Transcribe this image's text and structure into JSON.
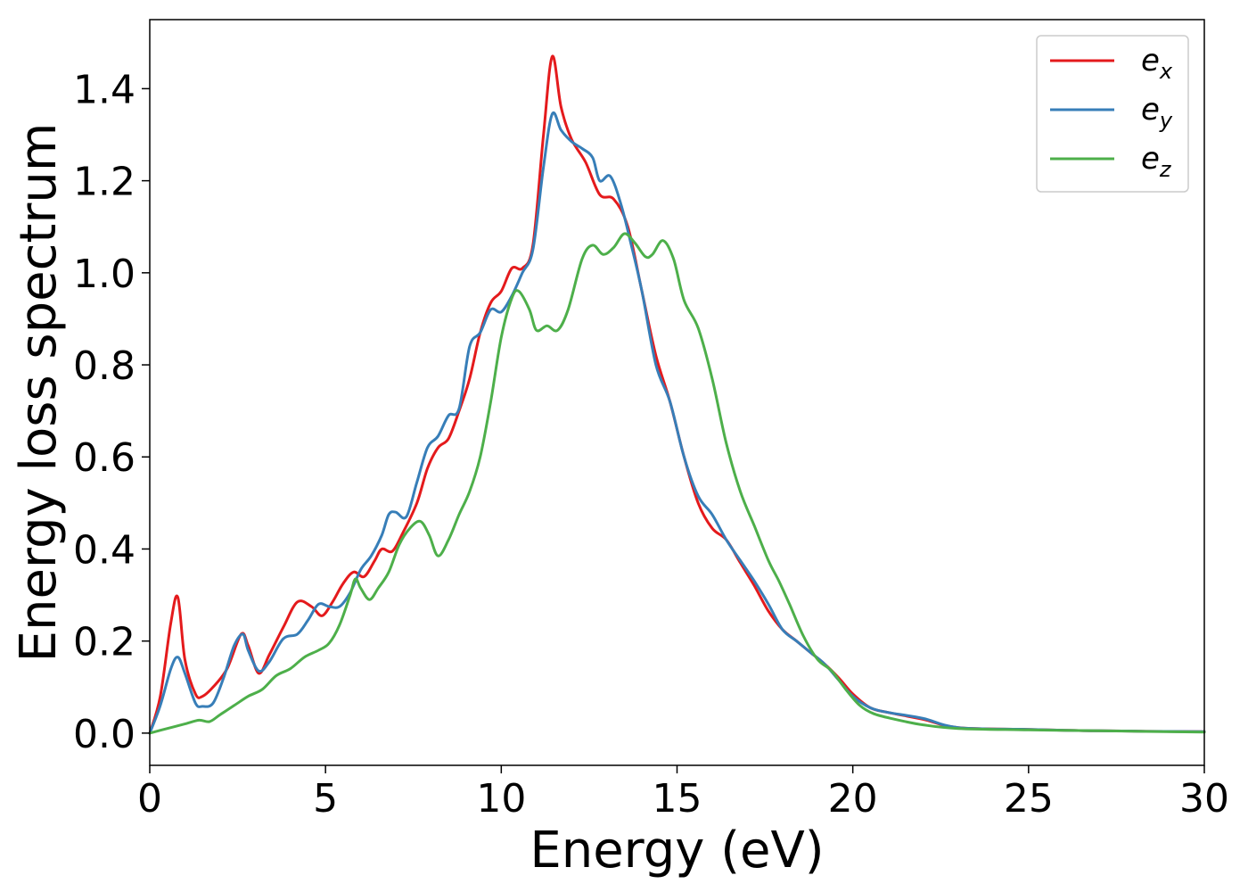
{
  "chart_data": {
    "type": "line",
    "title": "",
    "xlabel": "Energy (eV)",
    "ylabel": "Energy loss spectrum",
    "xlim": [
      0,
      30
    ],
    "ylim": [
      -0.07,
      1.55
    ],
    "xticks": [
      0,
      5,
      10,
      15,
      20,
      25,
      30
    ],
    "xtick_labels": [
      "0",
      "5",
      "10",
      "15",
      "20",
      "25",
      "30"
    ],
    "yticks": [
      0.0,
      0.2,
      0.4,
      0.6,
      0.8,
      1.0,
      1.2,
      1.4
    ],
    "ytick_labels": [
      "0.0",
      "0.2",
      "0.4",
      "0.6",
      "0.8",
      "1.0",
      "1.2",
      "1.4"
    ],
    "grid": false,
    "legend_position": "top-right",
    "series": [
      {
        "name": "e_x",
        "legend_base": "e",
        "legend_sub": "x",
        "color": "#e41a1c",
        "points": [
          [
            0,
            0
          ],
          [
            0.3,
            0.08
          ],
          [
            0.6,
            0.24
          ],
          [
            0.8,
            0.295
          ],
          [
            1.0,
            0.16
          ],
          [
            1.3,
            0.085
          ],
          [
            1.5,
            0.08
          ],
          [
            1.8,
            0.1
          ],
          [
            2.2,
            0.14
          ],
          [
            2.6,
            0.215
          ],
          [
            2.8,
            0.19
          ],
          [
            3.1,
            0.13
          ],
          [
            3.4,
            0.17
          ],
          [
            3.8,
            0.23
          ],
          [
            4.2,
            0.285
          ],
          [
            4.6,
            0.275
          ],
          [
            4.9,
            0.255
          ],
          [
            5.2,
            0.285
          ],
          [
            5.5,
            0.325
          ],
          [
            5.8,
            0.35
          ],
          [
            6.1,
            0.34
          ],
          [
            6.4,
            0.375
          ],
          [
            6.6,
            0.4
          ],
          [
            6.9,
            0.395
          ],
          [
            7.2,
            0.435
          ],
          [
            7.6,
            0.5
          ],
          [
            7.9,
            0.575
          ],
          [
            8.2,
            0.62
          ],
          [
            8.5,
            0.64
          ],
          [
            8.8,
            0.7
          ],
          [
            9.1,
            0.77
          ],
          [
            9.4,
            0.87
          ],
          [
            9.7,
            0.935
          ],
          [
            10.0,
            0.96
          ],
          [
            10.3,
            1.01
          ],
          [
            10.6,
            1.01
          ],
          [
            10.9,
            1.06
          ],
          [
            11.2,
            1.3
          ],
          [
            11.45,
            1.47
          ],
          [
            11.7,
            1.36
          ],
          [
            12.0,
            1.29
          ],
          [
            12.4,
            1.24
          ],
          [
            12.8,
            1.17
          ],
          [
            13.2,
            1.16
          ],
          [
            13.6,
            1.1
          ],
          [
            14.0,
            0.96
          ],
          [
            14.4,
            0.82
          ],
          [
            14.8,
            0.72
          ],
          [
            15.2,
            0.6
          ],
          [
            15.6,
            0.5
          ],
          [
            16.0,
            0.445
          ],
          [
            16.4,
            0.42
          ],
          [
            16.8,
            0.37
          ],
          [
            17.2,
            0.32
          ],
          [
            17.6,
            0.265
          ],
          [
            18.0,
            0.225
          ],
          [
            18.4,
            0.2
          ],
          [
            18.8,
            0.175
          ],
          [
            19.2,
            0.15
          ],
          [
            19.6,
            0.12
          ],
          [
            20.0,
            0.085
          ],
          [
            20.5,
            0.055
          ],
          [
            21.0,
            0.045
          ],
          [
            22.0,
            0.03
          ],
          [
            23.0,
            0.012
          ],
          [
            25.0,
            0.008
          ],
          [
            27.0,
            0.005
          ],
          [
            30.0,
            0.003
          ]
        ]
      },
      {
        "name": "e_y",
        "legend_base": "e",
        "legend_sub": "y",
        "color": "#377eb8",
        "points": [
          [
            0,
            0
          ],
          [
            0.3,
            0.06
          ],
          [
            0.6,
            0.14
          ],
          [
            0.8,
            0.165
          ],
          [
            1.0,
            0.13
          ],
          [
            1.3,
            0.065
          ],
          [
            1.5,
            0.058
          ],
          [
            1.8,
            0.065
          ],
          [
            2.1,
            0.12
          ],
          [
            2.4,
            0.19
          ],
          [
            2.65,
            0.215
          ],
          [
            2.8,
            0.18
          ],
          [
            3.1,
            0.135
          ],
          [
            3.4,
            0.155
          ],
          [
            3.8,
            0.205
          ],
          [
            4.2,
            0.215
          ],
          [
            4.5,
            0.245
          ],
          [
            4.8,
            0.28
          ],
          [
            5.1,
            0.275
          ],
          [
            5.4,
            0.275
          ],
          [
            5.7,
            0.305
          ],
          [
            6.0,
            0.355
          ],
          [
            6.3,
            0.385
          ],
          [
            6.6,
            0.43
          ],
          [
            6.8,
            0.475
          ],
          [
            7.0,
            0.48
          ],
          [
            7.3,
            0.47
          ],
          [
            7.6,
            0.545
          ],
          [
            7.9,
            0.62
          ],
          [
            8.2,
            0.645
          ],
          [
            8.5,
            0.69
          ],
          [
            8.8,
            0.705
          ],
          [
            9.1,
            0.84
          ],
          [
            9.4,
            0.87
          ],
          [
            9.7,
            0.92
          ],
          [
            10.0,
            0.915
          ],
          [
            10.3,
            0.95
          ],
          [
            10.6,
            1.0
          ],
          [
            10.9,
            1.05
          ],
          [
            11.2,
            1.23
          ],
          [
            11.45,
            1.345
          ],
          [
            11.7,
            1.31
          ],
          [
            12.0,
            1.285
          ],
          [
            12.3,
            1.27
          ],
          [
            12.6,
            1.25
          ],
          [
            12.8,
            1.2
          ],
          [
            13.1,
            1.21
          ],
          [
            13.4,
            1.15
          ],
          [
            13.7,
            1.06
          ],
          [
            14.0,
            0.96
          ],
          [
            14.4,
            0.8
          ],
          [
            14.8,
            0.72
          ],
          [
            15.2,
            0.6
          ],
          [
            15.6,
            0.515
          ],
          [
            16.0,
            0.475
          ],
          [
            16.4,
            0.42
          ],
          [
            16.8,
            0.375
          ],
          [
            17.2,
            0.33
          ],
          [
            17.6,
            0.28
          ],
          [
            18.0,
            0.225
          ],
          [
            18.4,
            0.2
          ],
          [
            18.8,
            0.175
          ],
          [
            19.2,
            0.15
          ],
          [
            19.6,
            0.115
          ],
          [
            20.0,
            0.08
          ],
          [
            20.5,
            0.055
          ],
          [
            21.0,
            0.045
          ],
          [
            22.0,
            0.032
          ],
          [
            23.0,
            0.012
          ],
          [
            25.0,
            0.008
          ],
          [
            27.0,
            0.005
          ],
          [
            30.0,
            0.003
          ]
        ]
      },
      {
        "name": "e_z",
        "legend_base": "e",
        "legend_sub": "z",
        "color": "#4daf4a",
        "points": [
          [
            0,
            0
          ],
          [
            0.5,
            0.01
          ],
          [
            1.0,
            0.02
          ],
          [
            1.4,
            0.028
          ],
          [
            1.7,
            0.025
          ],
          [
            2.0,
            0.04
          ],
          [
            2.4,
            0.06
          ],
          [
            2.8,
            0.08
          ],
          [
            3.2,
            0.095
          ],
          [
            3.6,
            0.125
          ],
          [
            4.0,
            0.14
          ],
          [
            4.4,
            0.165
          ],
          [
            4.8,
            0.18
          ],
          [
            5.1,
            0.195
          ],
          [
            5.4,
            0.235
          ],
          [
            5.7,
            0.3
          ],
          [
            5.85,
            0.335
          ],
          [
            6.0,
            0.315
          ],
          [
            6.25,
            0.29
          ],
          [
            6.5,
            0.315
          ],
          [
            6.8,
            0.35
          ],
          [
            7.1,
            0.41
          ],
          [
            7.4,
            0.445
          ],
          [
            7.7,
            0.46
          ],
          [
            7.95,
            0.43
          ],
          [
            8.2,
            0.385
          ],
          [
            8.5,
            0.42
          ],
          [
            8.8,
            0.475
          ],
          [
            9.1,
            0.525
          ],
          [
            9.4,
            0.6
          ],
          [
            9.7,
            0.72
          ],
          [
            10.0,
            0.86
          ],
          [
            10.3,
            0.945
          ],
          [
            10.5,
            0.96
          ],
          [
            10.8,
            0.92
          ],
          [
            11.0,
            0.875
          ],
          [
            11.3,
            0.885
          ],
          [
            11.6,
            0.875
          ],
          [
            11.9,
            0.92
          ],
          [
            12.3,
            1.03
          ],
          [
            12.6,
            1.06
          ],
          [
            12.9,
            1.04
          ],
          [
            13.2,
            1.055
          ],
          [
            13.5,
            1.085
          ],
          [
            13.8,
            1.065
          ],
          [
            14.1,
            1.035
          ],
          [
            14.3,
            1.04
          ],
          [
            14.6,
            1.07
          ],
          [
            14.9,
            1.03
          ],
          [
            15.2,
            0.94
          ],
          [
            15.6,
            0.88
          ],
          [
            16.0,
            0.77
          ],
          [
            16.4,
            0.63
          ],
          [
            16.8,
            0.525
          ],
          [
            17.2,
            0.45
          ],
          [
            17.6,
            0.375
          ],
          [
            17.9,
            0.33
          ],
          [
            18.2,
            0.28
          ],
          [
            18.6,
            0.21
          ],
          [
            19.0,
            0.16
          ],
          [
            19.4,
            0.135
          ],
          [
            19.8,
            0.095
          ],
          [
            20.2,
            0.06
          ],
          [
            20.6,
            0.042
          ],
          [
            21.2,
            0.03
          ],
          [
            22.0,
            0.018
          ],
          [
            23.0,
            0.01
          ],
          [
            25.0,
            0.007
          ],
          [
            27.0,
            0.005
          ],
          [
            30.0,
            0.002
          ]
        ]
      }
    ]
  }
}
